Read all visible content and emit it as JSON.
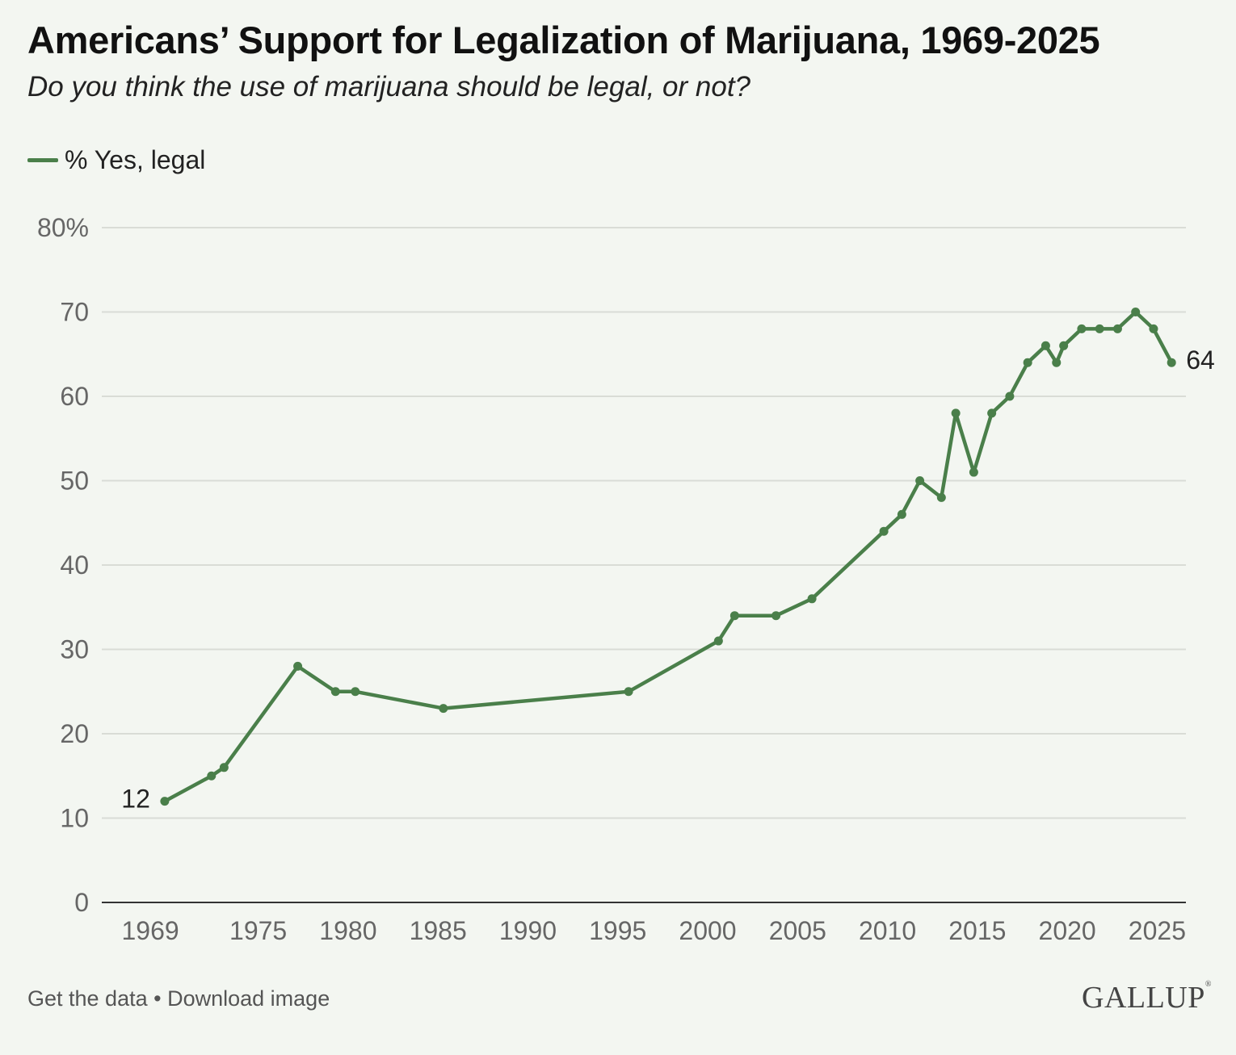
{
  "title": "Americans’ Support for Legalization of Marijuana, 1969-2025",
  "subtitle": "Do you think the use of marijuana should be legal, or not?",
  "footer": {
    "get_data": "Get the data",
    "separator": "•",
    "download": "Download image"
  },
  "brand": {
    "logo": "GALLUP",
    "reg": "®"
  },
  "chart_data": {
    "type": "line",
    "title": "Americans’ Support for Legalization of Marijuana, 1969-2025",
    "subtitle": "Do you think the use of marijuana should be legal, or not?",
    "xlabel": "",
    "ylabel": "",
    "xlim": [
      1966.3,
      2026.6
    ],
    "ylim": [
      0,
      80
    ],
    "x_ticks": [
      1969,
      1975,
      1980,
      1985,
      1990,
      1995,
      2000,
      2005,
      2010,
      2015,
      2020,
      2025
    ],
    "y_ticks": [
      0,
      10,
      20,
      30,
      40,
      50,
      60,
      70,
      80
    ],
    "y_tick_labels": [
      "0",
      "10",
      "20",
      "30",
      "40",
      "50",
      "60",
      "70",
      "80%"
    ],
    "grid": true,
    "legend": "top-left",
    "series": [
      {
        "name": "% Yes, legal",
        "color": "#4a7f4a",
        "points": [
          [
            1969.8,
            12
          ],
          [
            1972.4,
            15
          ],
          [
            1973.1,
            16
          ],
          [
            1977.2,
            28
          ],
          [
            1979.3,
            25
          ],
          [
            1980.4,
            25
          ],
          [
            1985.3,
            23
          ],
          [
            1995.6,
            25
          ],
          [
            2000.6,
            31
          ],
          [
            2001.5,
            34
          ],
          [
            2003.8,
            34
          ],
          [
            2005.8,
            36
          ],
          [
            2009.8,
            44
          ],
          [
            2010.8,
            46
          ],
          [
            2011.8,
            50
          ],
          [
            2013.0,
            48
          ],
          [
            2013.8,
            58
          ],
          [
            2014.8,
            51
          ],
          [
            2015.8,
            58
          ],
          [
            2016.8,
            60
          ],
          [
            2017.8,
            64
          ],
          [
            2018.8,
            66
          ],
          [
            2019.4,
            64
          ],
          [
            2019.8,
            66
          ],
          [
            2020.8,
            68
          ],
          [
            2021.8,
            68
          ],
          [
            2022.8,
            68
          ],
          [
            2023.8,
            70
          ],
          [
            2024.8,
            68
          ],
          [
            2025.8,
            64
          ]
        ],
        "endpoint_labels": {
          "first": "12",
          "last": "64"
        }
      }
    ]
  }
}
